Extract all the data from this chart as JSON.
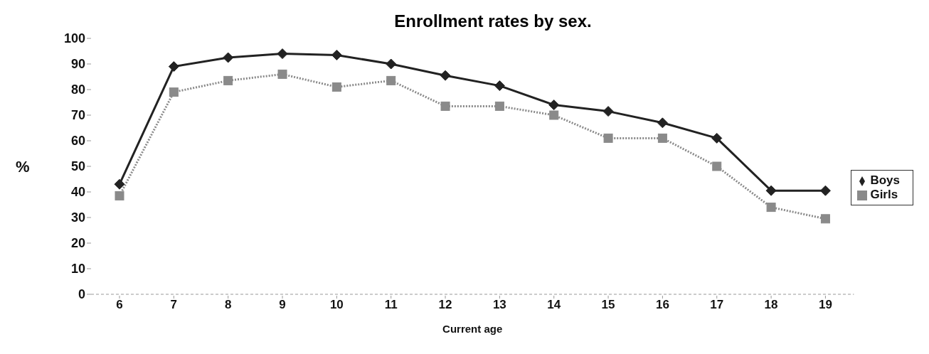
{
  "chart_data": {
    "type": "line",
    "title": "Enrollment rates by sex.",
    "xlabel": "Current age",
    "ylabel": "%",
    "categories": [
      "6",
      "7",
      "8",
      "9",
      "10",
      "11",
      "12",
      "13",
      "14",
      "15",
      "16",
      "17",
      "18",
      "19"
    ],
    "series": [
      {
        "name": "Boys",
        "color": "#222222",
        "marker": "diamond",
        "line_style": "solid",
        "values": [
          43,
          89,
          92.5,
          94,
          93.5,
          90,
          85.5,
          81.5,
          74,
          71.5,
          67,
          61,
          40.5,
          40.5
        ]
      },
      {
        "name": "Girls",
        "color": "#8a8a8a",
        "marker": "square",
        "line_style": "dotted",
        "values": [
          38.5,
          79,
          83.5,
          86,
          81,
          83.5,
          73.5,
          73.5,
          70,
          61,
          61,
          50,
          34,
          29.5
        ]
      }
    ],
    "ylim": [
      0,
      100
    ],
    "yticks": [
      0,
      10,
      20,
      30,
      40,
      50,
      60,
      70,
      80,
      90,
      100
    ],
    "grid": false,
    "legend": "right"
  }
}
